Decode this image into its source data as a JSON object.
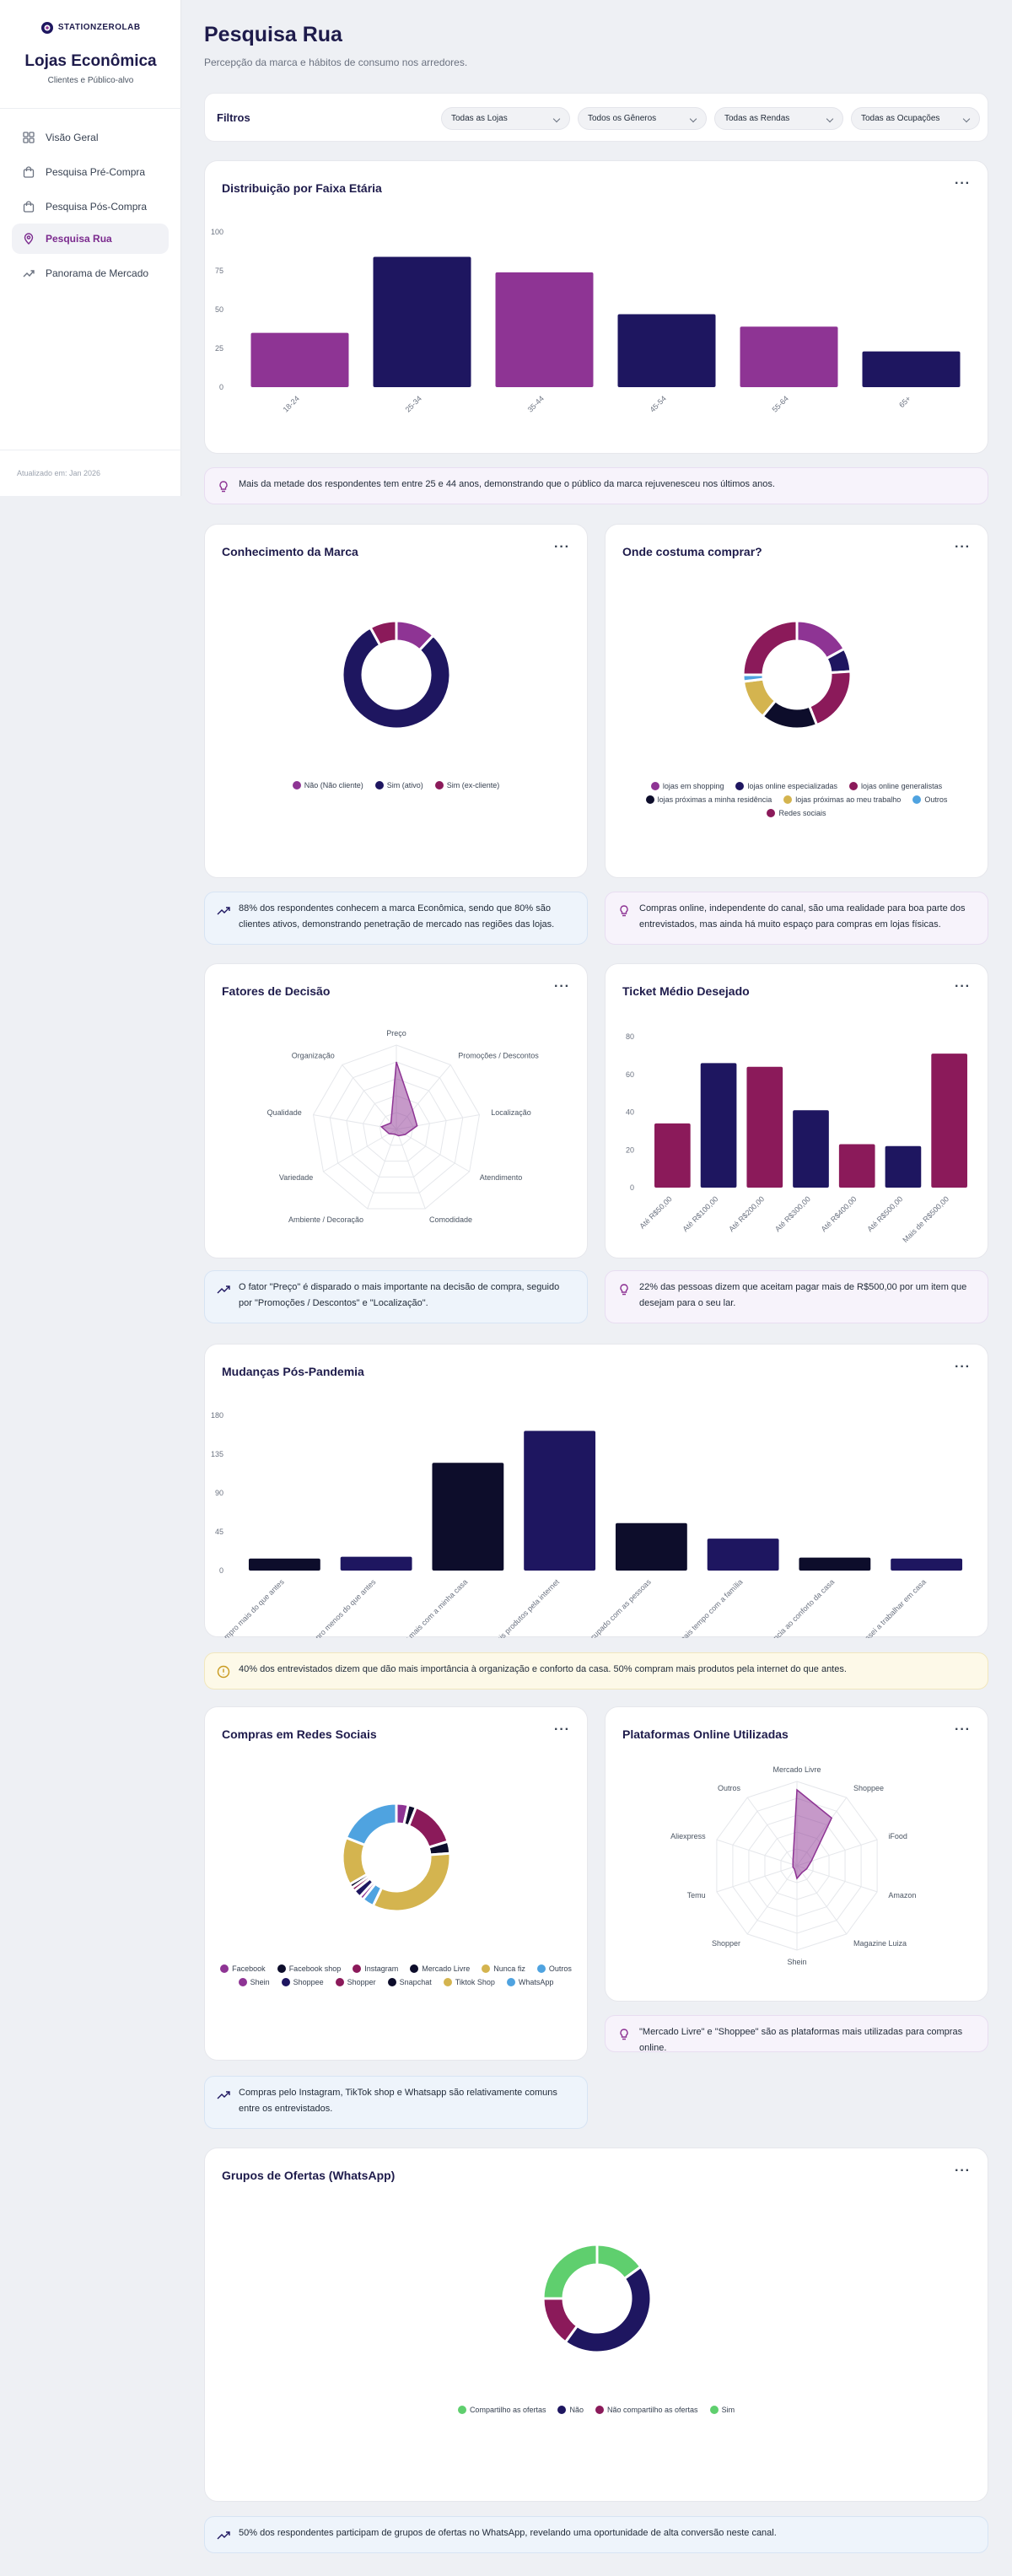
{
  "sidebar": {
    "logo": "STATIONZEROLAB",
    "title": "Lojas Econômica",
    "subtitle": "Clientes e Público-alvo",
    "items": [
      {
        "label": "Visão Geral",
        "icon": "grid-icon"
      },
      {
        "label": "Pesquisa Pré-Compra",
        "icon": "shopping-bag-icon"
      },
      {
        "label": "Pesquisa Pós-Compra",
        "icon": "shopping-bag-icon"
      },
      {
        "label": "Pesquisa Rua",
        "icon": "map-pin-icon",
        "active": true
      },
      {
        "label": "Panorama de Mercado",
        "icon": "trending-up-icon"
      }
    ],
    "updated": "Atualizado em: Jan 2026"
  },
  "page": {
    "title": "Pesquisa Rua",
    "subtitle": "Percepção da marca e hábitos de consumo nos arredores."
  },
  "filters": {
    "label": "Filtros",
    "selects": [
      {
        "value": "Todas as Lojas"
      },
      {
        "value": "Todos os Gêneros"
      },
      {
        "value": "Todas as Rendas"
      },
      {
        "value": "Todas as Ocupações"
      }
    ]
  },
  "colors": {
    "purple": "#8e3494",
    "navy": "#1e1660",
    "magenta": "#8b1a5a",
    "black": "#0d0d2b",
    "gold": "#d4b44f",
    "blue": "#4fa3e0",
    "green": "#5fcf6e",
    "accent": "#7b2a8e"
  },
  "chart_data": [
    {
      "id": "age",
      "type": "bar",
      "title": "Distribuição por Faixa Etária",
      "categories": [
        "18-24",
        "25-34",
        "35-44",
        "45-54",
        "55-64",
        "65+"
      ],
      "values": [
        35,
        84,
        74,
        47,
        39,
        23
      ],
      "yticks": [
        0,
        25,
        50,
        75,
        100
      ],
      "ylim": [
        0,
        100
      ],
      "colors": [
        "#8e3494",
        "#1e1660",
        "#8e3494",
        "#1e1660",
        "#8e3494",
        "#1e1660"
      ]
    },
    {
      "id": "brand",
      "type": "pie",
      "title": "Conhecimento da Marca",
      "labels": [
        "Não (Não cliente)",
        "Sim (ativo)",
        "Sim (ex-cliente)"
      ],
      "values": [
        12,
        80,
        8
      ],
      "colors": [
        "#8e3494",
        "#1e1660",
        "#8b1a5a"
      ]
    },
    {
      "id": "where",
      "type": "pie",
      "title": "Onde costuma comprar?",
      "labels": [
        "lojas em shopping",
        "lojas online especializadas",
        "lojas online generalistas",
        "lojas próximas a minha residência",
        "lojas próximas ao meu trabalho",
        "Outros",
        "Redes sociais"
      ],
      "values": [
        17,
        7,
        20,
        17,
        12,
        2,
        25
      ],
      "colors": [
        "#8e3494",
        "#1e1660",
        "#8b1a5a",
        "#0d0d2b",
        "#d4b44f",
        "#4fa3e0",
        "#8b1a5a"
      ]
    },
    {
      "id": "factors",
      "type": "radar",
      "title": "Fatores de Decisão",
      "labels": [
        "Preço",
        "Promoções / Descontos",
        "Localização",
        "Atendimento",
        "Comodidade",
        "Ambiente / Decoração",
        "Variedade",
        "Qualidade",
        "Organização"
      ],
      "values": [
        80,
        30,
        25,
        12,
        8,
        6,
        10,
        18,
        10
      ],
      "max": 100
    },
    {
      "id": "ticket",
      "type": "bar",
      "title": "Ticket Médio Desejado",
      "categories": [
        "Até R$50,00",
        "Até R$100,00",
        "Até R$200,00",
        "Até R$300,00",
        "Até R$400,00",
        "Até R$500,00",
        "Mais de R$500,00"
      ],
      "values": [
        34,
        66,
        64,
        41,
        23,
        22,
        71
      ],
      "yticks": [
        0,
        20,
        40,
        60,
        80
      ],
      "ylim": [
        0,
        80
      ],
      "colors": [
        "#8b1a5a",
        "#1e1660",
        "#8b1a5a",
        "#1e1660",
        "#8b1a5a",
        "#1e1660",
        "#8b1a5a"
      ]
    },
    {
      "id": "pandemic",
      "type": "bar",
      "title": "Mudanças Pós-Pandemia",
      "categories": [
        "Compro mais do que antes",
        "Compro menos do que antes",
        "Passei a gastar mais com a minha casa",
        "Compro mais produtos pela internet",
        "Ando mais preocupado com as pessoas",
        "Passo mais tempo com a família",
        "Dou mais importância ao conforto da casa",
        "Passei a trabalhar em casa"
      ],
      "values": [
        14,
        16,
        125,
        162,
        55,
        37,
        15,
        14
      ],
      "yticks": [
        0,
        45,
        90,
        135,
        180
      ],
      "ylim": [
        0,
        180
      ],
      "colors": [
        "#0d0d2b",
        "#1e1660",
        "#0d0d2b",
        "#1e1660",
        "#0d0d2b",
        "#1e1660",
        "#0d0d2b",
        "#1e1660"
      ]
    },
    {
      "id": "social",
      "type": "pie",
      "title": "Compras em Redes Sociais",
      "labels": [
        "Facebook",
        "Facebook shop",
        "Instagram",
        "Mercado Livre",
        "Nunca fiz",
        "Outros",
        "Shein",
        "Shoppee",
        "Shopper",
        "Snapchat",
        "Tiktok Shop",
        "WhatsApp"
      ],
      "values": [
        3,
        2,
        12,
        3,
        28,
        3,
        1,
        2,
        1,
        1,
        12,
        16
      ],
      "colors": [
        "#8e3494",
        "#0d0d2b",
        "#8b1a5a",
        "#0d0d2b",
        "#d4b44f",
        "#4fa3e0",
        "#8e3494",
        "#1e1660",
        "#8b1a5a",
        "#0d0d2b",
        "#d4b44f",
        "#4fa3e0"
      ]
    },
    {
      "id": "platforms",
      "type": "radar",
      "title": "Plataformas Online Utilizadas",
      "labels": [
        "Mercado Livre",
        "Shoppee",
        "iFood",
        "Amazon",
        "Magazine Luiza",
        "Shein",
        "Shopper",
        "Temu",
        "Aliexpress",
        "Outros"
      ],
      "values": [
        90,
        70,
        18,
        12,
        10,
        15,
        5,
        5,
        5,
        8
      ],
      "max": 100
    },
    {
      "id": "groups",
      "type": "pie",
      "title": "Grupos de Ofertas (WhatsApp)",
      "labels": [
        "Compartilho as ofertas",
        "Não",
        "Não compartilho as ofertas",
        "Sim"
      ],
      "values": [
        15,
        45,
        15,
        25
      ],
      "colors": [
        "#5fcf6e",
        "#1e1660",
        "#8b1a5a",
        "#5fcf6e"
      ]
    }
  ],
  "insights": {
    "age": "Mais da metade dos respondentes tem entre 25 e 44 anos, demonstrando que o público da marca rejuvenesceu nos últimos anos.",
    "brand": "88% dos respondentes conhecem a marca Econômica, sendo que 80% são clientes ativos, demonstrando penetração de mercado nas regiões das lojas.",
    "where": "Compras online, independente do canal, são uma realidade para boa parte dos entrevistados, mas ainda há muito espaço para compras em lojas físicas.",
    "factors": "O fator \"Preço\" é disparado o mais importante na decisão de compra, seguido por \"Promoções / Descontos\" e \"Localização\".",
    "ticket": "22% das pessoas dizem que aceitam pagar mais de R$500,00 por um item que desejam para o seu lar.",
    "pandemic": "40% dos entrevistados dizem que dão mais importância à organização e conforto da casa. 50% compram mais produtos pela internet do que antes.",
    "platforms": "\"Mercado Livre\" e \"Shoppee\" são as plataformas mais utilizadas para compras online.",
    "social": "Compras pelo Instagram, TikTok shop e Whatsapp são relativamente comuns entre os entrevistados.",
    "groups": "50% dos respondentes participam de grupos de ofertas no WhatsApp, revelando uma oportunidade de alta conversão neste canal."
  }
}
